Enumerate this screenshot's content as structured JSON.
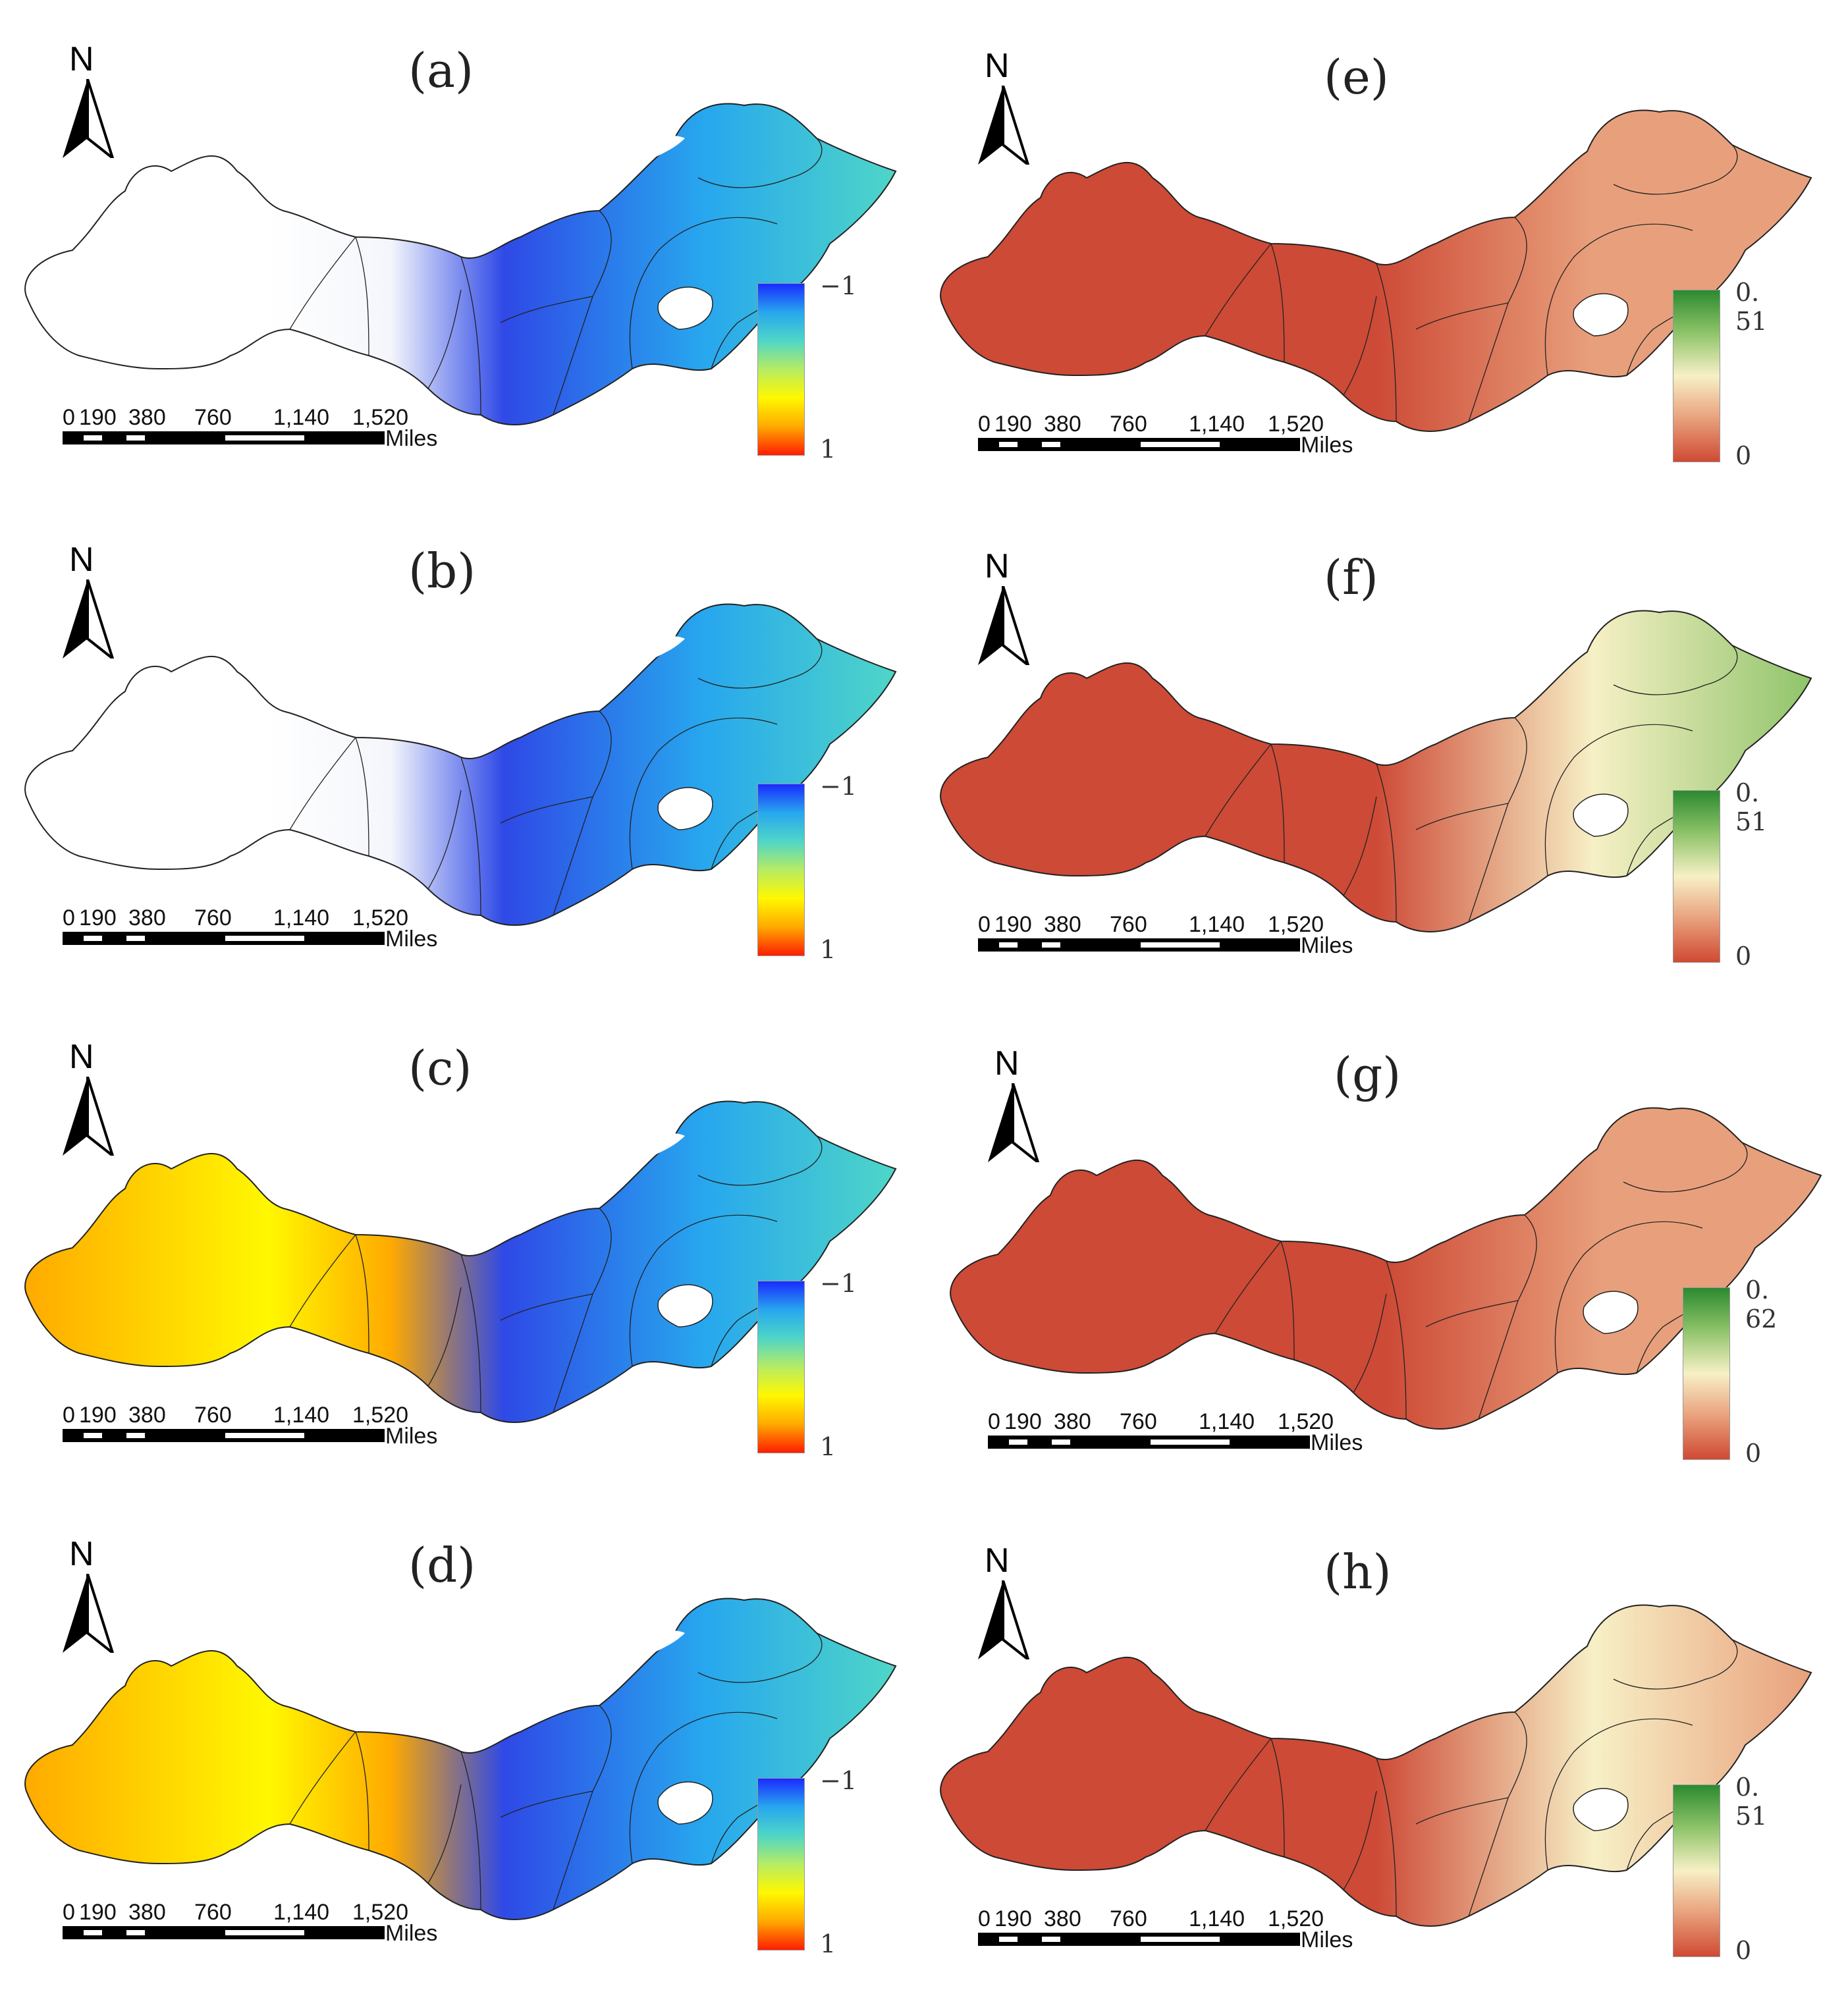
{
  "figure": {
    "panels": [
      {
        "label": "(a)",
        "type": "diverging",
        "legend_max": "−1",
        "legend_min": "1"
      },
      {
        "label": "(b)",
        "type": "diverging",
        "legend_max": "−1",
        "legend_min": "1"
      },
      {
        "label": "(c)",
        "type": "diverging",
        "legend_max": "−1",
        "legend_min": "1"
      },
      {
        "label": "(d)",
        "type": "diverging",
        "legend_max": "−1",
        "legend_min": "1"
      },
      {
        "label": "(e)",
        "type": "sequential",
        "legend_max": "0. 51",
        "legend_min": "0"
      },
      {
        "label": "(f)",
        "type": "sequential",
        "legend_max": "0. 51",
        "legend_min": "0"
      },
      {
        "label": "(g)",
        "type": "sequential",
        "legend_max": "0. 62",
        "legend_min": "0"
      },
      {
        "label": "(h)",
        "type": "sequential",
        "legend_max": "0. 51",
        "legend_min": "0"
      }
    ],
    "north_label": "N",
    "scale_ticks": [
      "0",
      "190",
      "380",
      "760",
      "1,140",
      "1,520"
    ],
    "scale_unit": "Miles"
  },
  "colors": {
    "diverging_ramp": [
      "#1a2bff",
      "#27a7ee",
      "#4fd6c7",
      "#b6ec63",
      "#fff800",
      "#ffaa00",
      "#ff1d00"
    ],
    "sequential_ramp": [
      "#2c8a2f",
      "#8fc46a",
      "#f7f0c6",
      "#e8a07c",
      "#cf4a33"
    ],
    "blue_fill": "#2f49e6",
    "red_fill": "#cd4a36",
    "boundary": "#222222"
  }
}
